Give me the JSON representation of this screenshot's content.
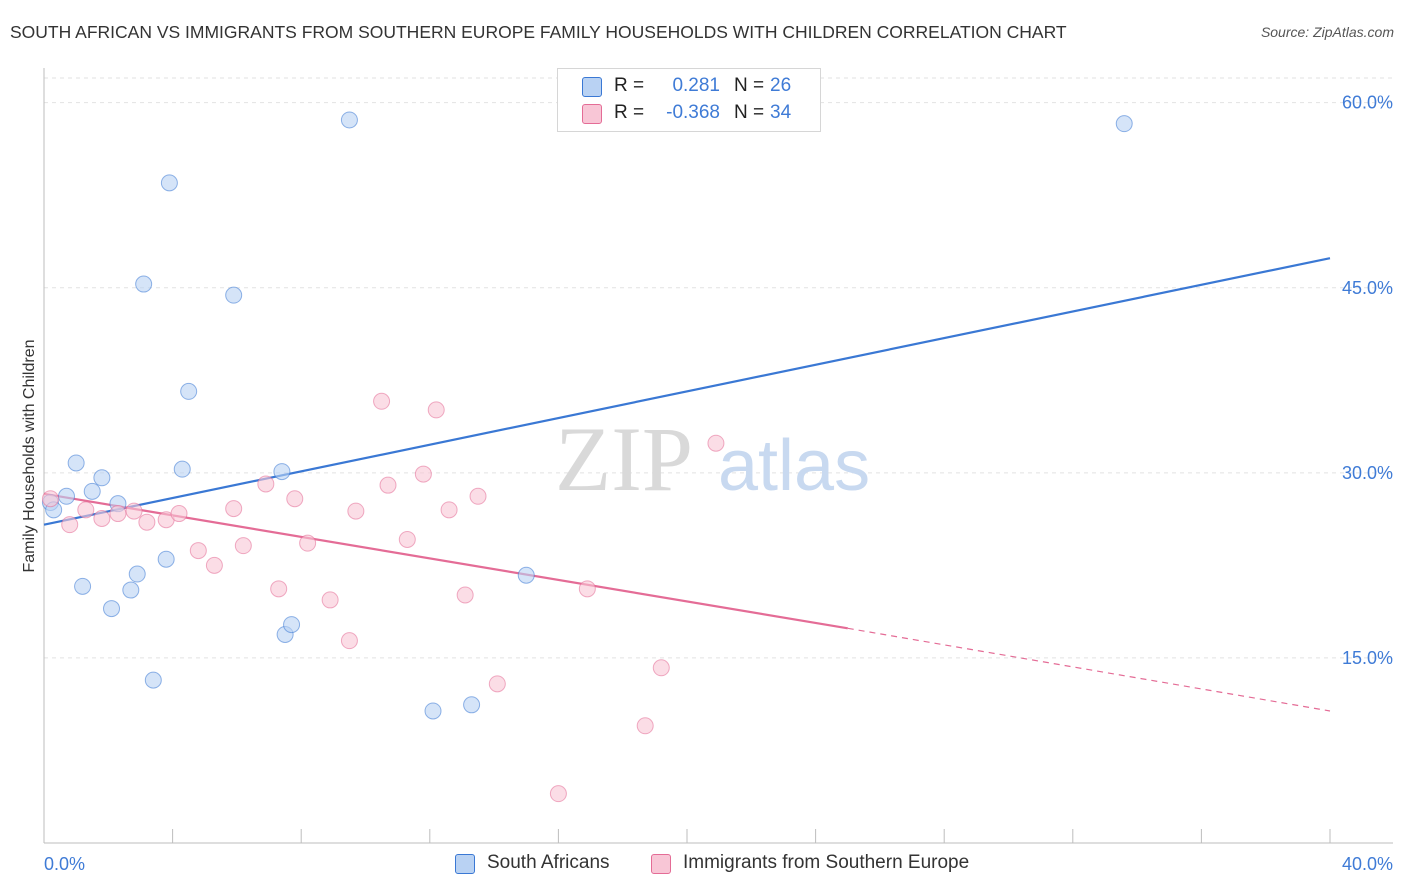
{
  "title": "SOUTH AFRICAN VS IMMIGRANTS FROM SOUTHERN EUROPE FAMILY HOUSEHOLDS WITH CHILDREN CORRELATION CHART",
  "source": "Source: ZipAtlas.com",
  "watermark": "ZIPatlas",
  "legend": {
    "rows": [
      {
        "r_label": "R =",
        "r_value": "0.281",
        "n_label": "N =",
        "n_value": "26"
      },
      {
        "r_label": "R =",
        "r_value": "-0.368",
        "n_label": "N =",
        "n_value": "34"
      }
    ]
  },
  "bottom_legend": [
    "South Africans",
    "Immigrants from Southern Europe"
  ],
  "chart_data": {
    "type": "scatter",
    "title": "SOUTH AFRICAN VS IMMIGRANTS FROM SOUTHERN EUROPE FAMILY HOUSEHOLDS WITH CHILDREN CORRELATION CHART",
    "xlabel": "",
    "ylabel": "Family Households with Children",
    "xlim": [
      0,
      40
    ],
    "ylim": [
      0,
      62
    ],
    "x_tick_labels": [
      "0.0%",
      "40.0%"
    ],
    "y_ticks": [
      15,
      30,
      45,
      60
    ],
    "y_tick_labels": [
      "15.0%",
      "30.0%",
      "45.0%",
      "60.0%"
    ],
    "grid": true,
    "series": [
      {
        "name": "South Africans",
        "color": "#3a78d4",
        "fill": "#b9d2f3",
        "points": [
          {
            "x": 0.2,
            "y": 27.6
          },
          {
            "x": 0.7,
            "y": 28.1
          },
          {
            "x": 1.0,
            "y": 30.8
          },
          {
            "x": 1.5,
            "y": 28.5
          },
          {
            "x": 1.8,
            "y": 29.6
          },
          {
            "x": 2.3,
            "y": 27.5
          },
          {
            "x": 1.2,
            "y": 20.8
          },
          {
            "x": 2.1,
            "y": 19.0
          },
          {
            "x": 2.7,
            "y": 20.5
          },
          {
            "x": 2.9,
            "y": 21.8
          },
          {
            "x": 3.1,
            "y": 45.3
          },
          {
            "x": 3.4,
            "y": 13.2
          },
          {
            "x": 3.8,
            "y": 23.0
          },
          {
            "x": 3.9,
            "y": 53.5
          },
          {
            "x": 4.3,
            "y": 30.3
          },
          {
            "x": 4.5,
            "y": 36.6
          },
          {
            "x": 5.9,
            "y": 44.4
          },
          {
            "x": 7.4,
            "y": 30.1
          },
          {
            "x": 7.5,
            "y": 16.9
          },
          {
            "x": 7.7,
            "y": 17.7
          },
          {
            "x": 9.5,
            "y": 58.6
          },
          {
            "x": 12.1,
            "y": 10.7
          },
          {
            "x": 13.3,
            "y": 11.2
          },
          {
            "x": 15.0,
            "y": 21.7
          },
          {
            "x": 33.6,
            "y": 58.3
          },
          {
            "x": 0.3,
            "y": 27.0
          }
        ],
        "trend": {
          "x0": 0,
          "y0": 25.8,
          "x1": 40,
          "y1": 47.4
        }
      },
      {
        "name": "Immigrants from Southern Europe",
        "color": "#e46c96",
        "fill": "#f8c6d6",
        "points": [
          {
            "x": 0.2,
            "y": 27.9
          },
          {
            "x": 0.8,
            "y": 25.8
          },
          {
            "x": 1.3,
            "y": 27.0
          },
          {
            "x": 1.8,
            "y": 26.3
          },
          {
            "x": 2.3,
            "y": 26.7
          },
          {
            "x": 2.8,
            "y": 26.9
          },
          {
            "x": 3.2,
            "y": 26.0
          },
          {
            "x": 3.8,
            "y": 26.2
          },
          {
            "x": 4.2,
            "y": 26.7
          },
          {
            "x": 4.8,
            "y": 23.7
          },
          {
            "x": 5.3,
            "y": 22.5
          },
          {
            "x": 5.9,
            "y": 27.1
          },
          {
            "x": 6.2,
            "y": 24.1
          },
          {
            "x": 6.9,
            "y": 29.1
          },
          {
            "x": 7.3,
            "y": 20.6
          },
          {
            "x": 7.8,
            "y": 27.9
          },
          {
            "x": 8.2,
            "y": 24.3
          },
          {
            "x": 8.9,
            "y": 19.7
          },
          {
            "x": 9.5,
            "y": 16.4
          },
          {
            "x": 9.7,
            "y": 26.9
          },
          {
            "x": 10.5,
            "y": 35.8
          },
          {
            "x": 10.7,
            "y": 29.0
          },
          {
            "x": 11.3,
            "y": 24.6
          },
          {
            "x": 11.8,
            "y": 29.9
          },
          {
            "x": 12.2,
            "y": 35.1
          },
          {
            "x": 12.6,
            "y": 27.0
          },
          {
            "x": 13.1,
            "y": 20.1
          },
          {
            "x": 13.5,
            "y": 28.1
          },
          {
            "x": 14.1,
            "y": 12.9
          },
          {
            "x": 16.0,
            "y": 4.0
          },
          {
            "x": 16.9,
            "y": 20.6
          },
          {
            "x": 18.7,
            "y": 9.5
          },
          {
            "x": 19.2,
            "y": 14.2
          },
          {
            "x": 20.9,
            "y": 32.4
          }
        ],
        "trend": {
          "x0": 0,
          "y0": 28.3,
          "x1": 25,
          "y1": 17.4,
          "dash_x1": 40,
          "dash_y1": 10.7
        }
      }
    ]
  }
}
